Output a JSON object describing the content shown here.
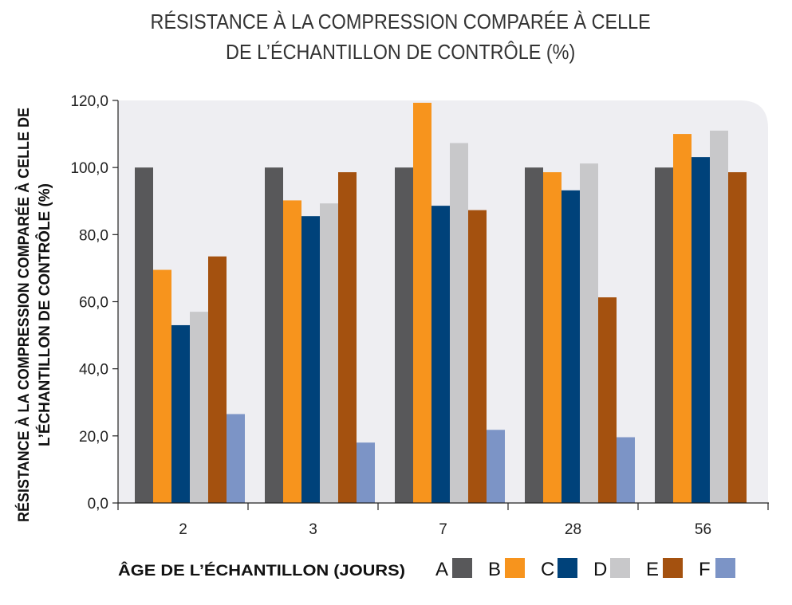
{
  "chart_data": {
    "type": "bar",
    "title_lines": [
      "RÉSISTANCE À LA COMPRESSION COMPARÉE À CELLE",
      "DE L’ÉCHANTILLON DE CONTRÔLE (%)"
    ],
    "xlabel": "ÂGE DE L’ÉCHANTILLON (JOURS)",
    "ylabel_lines": [
      "RÉSISTANCE À LA COMPRESSION COMPARÉE À CELLE DE",
      "L’ÉCHANTILLON DE CONTRÔLE (%)"
    ],
    "categories": [
      "2",
      "3",
      "7",
      "28",
      "56"
    ],
    "ylim": [
      0,
      120
    ],
    "yticks": [
      "0,0",
      "20,0",
      "40,0",
      "60,0",
      "80,0",
      "100,0",
      "120,0"
    ],
    "grid": false,
    "legend_position": "bottom",
    "series": [
      {
        "name": "A",
        "color": "#58585a",
        "values": [
          100,
          100,
          100,
          100,
          100
        ]
      },
      {
        "name": "B",
        "color": "#f7941d",
        "values": [
          69.5,
          90.2,
          119.3,
          98.6,
          110.0
        ]
      },
      {
        "name": "C",
        "color": "#00427a",
        "values": [
          53.0,
          85.5,
          88.6,
          93.2,
          103.1
        ]
      },
      {
        "name": "D",
        "color": "#c8c8ca",
        "values": [
          57.0,
          89.3,
          107.3,
          101.2,
          111.0
        ]
      },
      {
        "name": "E",
        "color": "#a4510f",
        "values": [
          73.5,
          98.6,
          87.3,
          61.3,
          98.6
        ]
      },
      {
        "name": "F",
        "color": "#7c94c6",
        "values": [
          26.5,
          18.0,
          21.8,
          19.6,
          null
        ]
      }
    ],
    "plot_background": "#eeeef2"
  }
}
